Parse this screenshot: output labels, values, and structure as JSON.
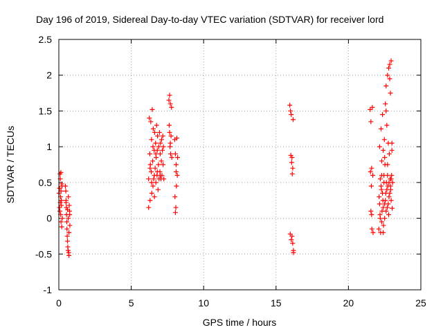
{
  "chart_data": {
    "type": "scatter",
    "title": "Day 196 of 2019, Sidereal Day-to-day VTEC variation (SDTVAR) for receiver lord",
    "xlabel": "GPS time / hours",
    "ylabel": "SDTVAR / TECUs",
    "xlim": [
      0,
      25
    ],
    "ylim": [
      -1,
      2.5
    ],
    "xticks": [
      0,
      5,
      10,
      15,
      20,
      25
    ],
    "yticks": [
      -1,
      -0.5,
      0,
      0.5,
      1,
      1.5,
      2,
      2.5
    ],
    "xtick_labels": [
      "0",
      "5",
      "10",
      "15",
      "20",
      "25"
    ],
    "ytick_labels": [
      "-1",
      "-0.5",
      "0",
      "0.5",
      "1",
      "1.5",
      "2",
      "2.5"
    ],
    "grid": true,
    "marker": "plus",
    "color": "#ff0000",
    "series": [
      {
        "name": "SDTVAR",
        "points": [
          [
            0.02,
            0.35
          ],
          [
            0.05,
            0.42
          ],
          [
            0.07,
            0.1
          ],
          [
            0.08,
            0.62
          ],
          [
            0.1,
            0.55
          ],
          [
            0.12,
            0.3
          ],
          [
            0.13,
            0.05
          ],
          [
            0.14,
            0.64
          ],
          [
            0.15,
            -0.05
          ],
          [
            0.17,
            0.25
          ],
          [
            0.18,
            0.18
          ],
          [
            0.2,
            -0.12
          ],
          [
            0.22,
            0.45
          ],
          [
            0.24,
            0.0
          ],
          [
            0.1,
            0.22
          ],
          [
            0.05,
            0.15
          ],
          [
            0.15,
            0.38
          ],
          [
            0.2,
            0.48
          ],
          [
            0.45,
            0.45
          ],
          [
            0.48,
            0.38
          ],
          [
            0.5,
            0.22
          ],
          [
            0.52,
            0.15
          ],
          [
            0.53,
            0.05
          ],
          [
            0.55,
            -0.05
          ],
          [
            0.56,
            -0.15
          ],
          [
            0.58,
            -0.25
          ],
          [
            0.6,
            -0.32
          ],
          [
            0.62,
            -0.4
          ],
          [
            0.64,
            -0.45
          ],
          [
            0.66,
            0.3
          ],
          [
            0.68,
            -0.48
          ],
          [
            0.7,
            -0.52
          ],
          [
            0.72,
            0.18
          ],
          [
            0.74,
            0.1
          ],
          [
            0.76,
            -0.1
          ],
          [
            0.6,
            0.12
          ],
          [
            0.65,
            0.0
          ],
          [
            0.7,
            -0.2
          ],
          [
            0.5,
            0.25
          ],
          [
            0.75,
            0.05
          ],
          [
            6.2,
            0.55
          ],
          [
            6.25,
            1.4
          ],
          [
            6.28,
            0.9
          ],
          [
            6.3,
            0.25
          ],
          [
            6.32,
            0.75
          ],
          [
            6.35,
            1.35
          ],
          [
            6.38,
            0.65
          ],
          [
            6.4,
            1.1
          ],
          [
            6.42,
            0.35
          ],
          [
            6.45,
            1.52
          ],
          [
            6.48,
            0.8
          ],
          [
            6.5,
            0.45
          ],
          [
            6.52,
            1.25
          ],
          [
            6.55,
            0.55
          ],
          [
            6.58,
            0.95
          ],
          [
            6.6,
            0.3
          ],
          [
            6.62,
            1.2
          ],
          [
            6.65,
            0.7
          ],
          [
            6.68,
            1.05
          ],
          [
            6.7,
            0.5
          ],
          [
            6.72,
            0.85
          ],
          [
            6.75,
            1.3
          ],
          [
            6.78,
            0.6
          ],
          [
            6.8,
            0.95
          ],
          [
            6.82,
            1.15
          ],
          [
            6.85,
            0.4
          ],
          [
            6.88,
            0.75
          ],
          [
            6.9,
            1.0
          ],
          [
            6.92,
            0.55
          ],
          [
            6.95,
            1.2
          ],
          [
            6.98,
            0.65
          ],
          [
            7.0,
            0.9
          ],
          [
            7.02,
            1.05
          ],
          [
            7.05,
            0.55
          ],
          [
            7.08,
            0.8
          ],
          [
            7.1,
            1.1
          ],
          [
            7.12,
            0.6
          ],
          [
            7.15,
            0.95
          ],
          [
            7.18,
            1.15
          ],
          [
            7.2,
            0.75
          ],
          [
            7.22,
            1.0
          ],
          [
            7.25,
            0.55
          ],
          [
            6.2,
            0.15
          ],
          [
            6.3,
            0.7
          ],
          [
            6.4,
            0.5
          ],
          [
            6.5,
            1.0
          ],
          [
            6.6,
            0.6
          ],
          [
            6.7,
            0.9
          ],
          [
            6.8,
            0.65
          ],
          [
            7.0,
            0.6
          ],
          [
            7.6,
            1.65
          ],
          [
            7.62,
            1.3
          ],
          [
            7.65,
            1.2
          ],
          [
            7.68,
            1.0
          ],
          [
            7.7,
            1.6
          ],
          [
            7.72,
            0.9
          ],
          [
            7.75,
            1.15
          ],
          [
            7.78,
            1.55
          ],
          [
            7.8,
            0.85
          ],
          [
            7.65,
            1.72
          ],
          [
            7.7,
            1.05
          ],
          [
            8.0,
            1.1
          ],
          [
            8.02,
            0.3
          ],
          [
            8.05,
            0.9
          ],
          [
            8.08,
            0.15
          ],
          [
            8.1,
            0.75
          ],
          [
            8.12,
            0.45
          ],
          [
            8.15,
            1.12
          ],
          [
            8.18,
            0.6
          ],
          [
            8.2,
            0.85
          ],
          [
            8.05,
            0.08
          ],
          [
            8.1,
            0.65
          ],
          [
            15.95,
            1.58
          ],
          [
            16.0,
            1.5
          ],
          [
            16.02,
            0.88
          ],
          [
            16.05,
            1.45
          ],
          [
            16.08,
            0.78
          ],
          [
            16.1,
            -0.25
          ],
          [
            16.12,
            0.62
          ],
          [
            16.15,
            -0.35
          ],
          [
            16.18,
            1.38
          ],
          [
            16.2,
            -0.45
          ],
          [
            15.98,
            -0.22
          ],
          [
            16.05,
            -0.3
          ],
          [
            16.1,
            0.85
          ],
          [
            16.15,
            0.7
          ],
          [
            16.2,
            -0.48
          ],
          [
            21.5,
            1.52
          ],
          [
            21.52,
            0.65
          ],
          [
            21.55,
            1.35
          ],
          [
            21.58,
            0.45
          ],
          [
            21.6,
            0.05
          ],
          [
            21.62,
            -0.15
          ],
          [
            21.65,
            1.55
          ],
          [
            21.68,
            0.6
          ],
          [
            21.7,
            -0.2
          ],
          [
            21.55,
            0.1
          ],
          [
            21.6,
            0.7
          ],
          [
            22.1,
            -0.15
          ],
          [
            22.12,
            0.3
          ],
          [
            22.15,
            1.0
          ],
          [
            22.18,
            0.05
          ],
          [
            22.2,
            0.55
          ],
          [
            22.22,
            -0.2
          ],
          [
            22.25,
            1.25
          ],
          [
            22.28,
            0.4
          ],
          [
            22.3,
            0.8
          ],
          [
            22.32,
            0.1
          ],
          [
            22.35,
            1.45
          ],
          [
            22.38,
            0.25
          ],
          [
            22.4,
            0.95
          ],
          [
            22.42,
            -0.1
          ],
          [
            22.45,
            0.6
          ],
          [
            22.48,
            1.1
          ],
          [
            22.5,
            0.2
          ],
          [
            22.52,
            0.75
          ],
          [
            22.55,
            1.6
          ],
          [
            22.58,
            0.35
          ],
          [
            22.6,
            1.85
          ],
          [
            22.62,
            0.5
          ],
          [
            22.65,
            1.3
          ],
          [
            22.68,
            0.15
          ],
          [
            22.7,
            2.0
          ],
          [
            22.72,
            0.45
          ],
          [
            22.75,
            1.05
          ],
          [
            22.78,
            2.1
          ],
          [
            22.8,
            0.3
          ],
          [
            22.82,
            0.9
          ],
          [
            22.85,
            2.15
          ],
          [
            22.88,
            0.55
          ],
          [
            22.9,
            1.75
          ],
          [
            22.92,
            0.4
          ],
          [
            22.95,
            2.2
          ],
          [
            22.98,
            0.6
          ],
          [
            23.0,
            1.05
          ],
          [
            23.02,
            0.14
          ],
          [
            23.05,
            0.5
          ],
          [
            22.2,
            0.0
          ],
          [
            22.25,
            0.45
          ],
          [
            22.3,
            -0.05
          ],
          [
            22.35,
            0.35
          ],
          [
            22.4,
            0.15
          ],
          [
            22.45,
            0.5
          ],
          [
            22.5,
            0.0
          ],
          [
            22.55,
            0.25
          ],
          [
            22.6,
            0.1
          ],
          [
            22.65,
            0.4
          ],
          [
            22.7,
            0.6
          ],
          [
            22.75,
            0.2
          ],
          [
            22.8,
            0.5
          ],
          [
            22.85,
            0.35
          ],
          [
            22.9,
            0.45
          ],
          [
            22.95,
            0.25
          ],
          [
            22.15,
            0.2
          ],
          [
            22.3,
            0.6
          ],
          [
            22.4,
            -0.2
          ],
          [
            22.6,
            1.5
          ],
          [
            22.5,
            0.85
          ],
          [
            22.85,
            1.95
          ],
          [
            22.7,
            0.75
          ],
          [
            22.95,
            0.55
          ],
          [
            23.0,
            0.95
          ],
          [
            22.78,
            0.05
          ]
        ]
      }
    ]
  }
}
